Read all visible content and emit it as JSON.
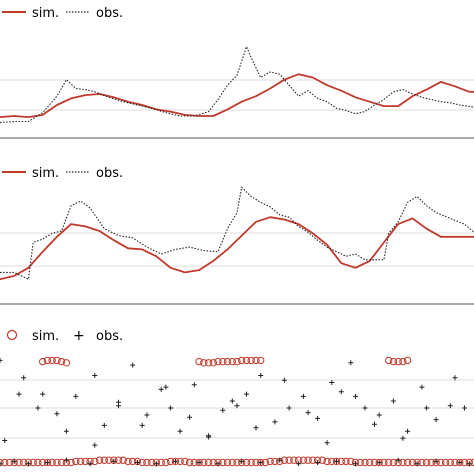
{
  "chart_data": [
    {
      "type": "line",
      "legend": {
        "placement": "top-left",
        "entries": [
          "sim.",
          "obs."
        ]
      },
      "grid": true,
      "xlim": [
        0,
        100
      ],
      "ylim": [
        0,
        1
      ],
      "series": [
        {
          "name": "sim.",
          "color": "#c0392b",
          "style": "solid",
          "x": [
            0,
            3,
            6,
            9,
            12,
            15,
            18,
            21,
            24,
            27,
            30,
            33,
            36,
            39,
            42,
            45,
            48,
            51,
            54,
            57,
            60,
            63,
            66,
            69,
            72,
            75,
            78,
            81,
            84,
            87,
            90,
            93,
            96,
            99,
            100
          ],
          "y": [
            0.19,
            0.2,
            0.19,
            0.21,
            0.3,
            0.36,
            0.39,
            0.4,
            0.37,
            0.33,
            0.3,
            0.26,
            0.24,
            0.21,
            0.2,
            0.2,
            0.26,
            0.33,
            0.38,
            0.45,
            0.53,
            0.58,
            0.55,
            0.48,
            0.43,
            0.37,
            0.33,
            0.29,
            0.29,
            0.38,
            0.44,
            0.51,
            0.47,
            0.42,
            0.42
          ]
        },
        {
          "name": "obs.",
          "color": "#222222",
          "style": "dotted",
          "x": [
            0,
            3,
            6,
            9,
            12,
            14,
            16,
            18,
            20,
            23,
            26,
            29,
            32,
            35,
            38,
            41,
            44,
            46,
            48,
            50,
            52,
            53,
            55,
            57,
            59,
            61,
            63,
            65,
            67,
            69,
            71,
            73,
            75,
            77,
            79,
            81,
            83,
            85,
            87,
            89,
            91,
            93,
            95,
            97,
            100
          ],
          "y": [
            0.14,
            0.15,
            0.15,
            0.23,
            0.38,
            0.53,
            0.45,
            0.44,
            0.42,
            0.37,
            0.33,
            0.3,
            0.27,
            0.23,
            0.2,
            0.2,
            0.24,
            0.35,
            0.48,
            0.57,
            0.83,
            0.73,
            0.55,
            0.6,
            0.58,
            0.48,
            0.38,
            0.43,
            0.36,
            0.33,
            0.27,
            0.25,
            0.22,
            0.24,
            0.3,
            0.35,
            0.42,
            0.44,
            0.4,
            0.37,
            0.35,
            0.33,
            0.32,
            0.3,
            0.28
          ]
        }
      ]
    },
    {
      "type": "line",
      "legend": {
        "placement": "top-left",
        "entries": [
          "sim.",
          "obs."
        ]
      },
      "grid": true,
      "xlim": [
        0,
        100
      ],
      "ylim": [
        0,
        1
      ],
      "series": [
        {
          "name": "sim.",
          "color": "#c0392b",
          "style": "solid",
          "x": [
            0,
            3,
            6,
            9,
            12,
            15,
            18,
            21,
            24,
            27,
            30,
            33,
            36,
            39,
            42,
            45,
            48,
            51,
            54,
            57,
            60,
            63,
            66,
            69,
            72,
            75,
            78,
            81,
            84,
            87,
            90,
            93,
            96,
            99,
            100
          ],
          "y": [
            0.18,
            0.21,
            0.28,
            0.42,
            0.55,
            0.66,
            0.64,
            0.6,
            0.52,
            0.45,
            0.44,
            0.38,
            0.28,
            0.24,
            0.26,
            0.34,
            0.44,
            0.56,
            0.68,
            0.72,
            0.7,
            0.66,
            0.58,
            0.48,
            0.32,
            0.28,
            0.34,
            0.5,
            0.66,
            0.71,
            0.62,
            0.55,
            0.55,
            0.55,
            0.55
          ]
        },
        {
          "name": "obs.",
          "color": "#222222",
          "style": "dotted",
          "x": [
            0,
            3,
            6,
            7,
            9,
            11,
            13,
            15,
            17,
            19,
            22,
            25,
            28,
            31,
            34,
            37,
            40,
            43,
            46,
            48,
            50,
            51,
            53,
            55,
            57,
            59,
            61,
            63,
            65,
            67,
            69,
            71,
            73,
            75,
            77,
            79,
            81,
            82,
            84,
            86,
            88,
            90,
            92,
            95,
            98,
            100
          ],
          "y": [
            0.24,
            0.24,
            0.18,
            0.5,
            0.53,
            0.58,
            0.6,
            0.82,
            0.86,
            0.8,
            0.62,
            0.56,
            0.54,
            0.46,
            0.4,
            0.44,
            0.46,
            0.43,
            0.42,
            0.62,
            0.76,
            0.98,
            0.9,
            0.85,
            0.81,
            0.74,
            0.72,
            0.64,
            0.59,
            0.52,
            0.46,
            0.42,
            0.38,
            0.4,
            0.35,
            0.35,
            0.35,
            0.58,
            0.68,
            0.85,
            0.9,
            0.82,
            0.76,
            0.71,
            0.66,
            0.59
          ]
        }
      ]
    },
    {
      "type": "scatter",
      "legend": {
        "placement": "top-left",
        "entries": [
          "sim.",
          "obs."
        ]
      },
      "grid": true,
      "xlim": [
        0,
        100
      ],
      "ylim": [
        0,
        1
      ],
      "series": [
        {
          "name": "sim.",
          "color": "#c0392b",
          "marker": "open-circle",
          "x": [
            0,
            1,
            2,
            3,
            4,
            5,
            6,
            7,
            8,
            9,
            10,
            11,
            12,
            13,
            14,
            15,
            16,
            17,
            18,
            19,
            20,
            21,
            22,
            23,
            24,
            25,
            26,
            27,
            28,
            29,
            30,
            31,
            32,
            33,
            34,
            35,
            36,
            37,
            38,
            39,
            40,
            41,
            42,
            43,
            44,
            45,
            46,
            47,
            48,
            49,
            50,
            51,
            52,
            53,
            54,
            55,
            56,
            57,
            58,
            59,
            60,
            61,
            62,
            63,
            64,
            65,
            66,
            67,
            68,
            69,
            70,
            71,
            72,
            73,
            74,
            75,
            76,
            77,
            78,
            79,
            80,
            81,
            82,
            83,
            84,
            85,
            86,
            87,
            88,
            89,
            90,
            91,
            92,
            93,
            94,
            95,
            96,
            97,
            98,
            99,
            100,
            9,
            10,
            11,
            12,
            13,
            14,
            42,
            43,
            44,
            45,
            46,
            47,
            48,
            49,
            50,
            51,
            52,
            53,
            54,
            55,
            82,
            83,
            84,
            85,
            86
          ],
          "y": [
            0.03,
            0.03,
            0.03,
            0.03,
            0.03,
            0.03,
            0.03,
            0.03,
            0.03,
            0.03,
            0.03,
            0.03,
            0.03,
            0.03,
            0.03,
            0.03,
            0.04,
            0.04,
            0.04,
            0.04,
            0.04,
            0.05,
            0.05,
            0.05,
            0.05,
            0.05,
            0.05,
            0.04,
            0.04,
            0.04,
            0.03,
            0.03,
            0.03,
            0.03,
            0.03,
            0.03,
            0.04,
            0.04,
            0.04,
            0.04,
            0.03,
            0.03,
            0.03,
            0.03,
            0.03,
            0.03,
            0.03,
            0.03,
            0.03,
            0.03,
            0.03,
            0.03,
            0.03,
            0.03,
            0.03,
            0.03,
            0.03,
            0.04,
            0.04,
            0.04,
            0.05,
            0.05,
            0.05,
            0.05,
            0.05,
            0.05,
            0.05,
            0.05,
            0.05,
            0.04,
            0.04,
            0.04,
            0.04,
            0.04,
            0.04,
            0.03,
            0.03,
            0.03,
            0.03,
            0.03,
            0.03,
            0.03,
            0.03,
            0.03,
            0.03,
            0.03,
            0.03,
            0.03,
            0.03,
            0.03,
            0.03,
            0.03,
            0.03,
            0.03,
            0.03,
            0.03,
            0.03,
            0.03,
            0.03,
            0.03,
            0.03,
            0.9,
            0.91,
            0.91,
            0.91,
            0.9,
            0.89,
            0.9,
            0.89,
            0.89,
            0.89,
            0.9,
            0.9,
            0.9,
            0.9,
            0.9,
            0.91,
            0.91,
            0.91,
            0.91,
            0.91,
            0.91,
            0.9,
            0.9,
            0.9,
            0.91
          ]
        },
        {
          "name": "obs.",
          "color": "#222222",
          "marker": "plus",
          "x": [
            0,
            4,
            8,
            12,
            16,
            20,
            22,
            25,
            28,
            31,
            34,
            36,
            38,
            41,
            44,
            47,
            50,
            52,
            55,
            58,
            61,
            64,
            67,
            70,
            72,
            74,
            77,
            80,
            83,
            86,
            89,
            92,
            95,
            98,
            1,
            5,
            9,
            14,
            20,
            25,
            30,
            35,
            40,
            44,
            49,
            54,
            60,
            65,
            69,
            75,
            79,
            85,
            90,
            96,
            0,
            3,
            6,
            10,
            14,
            19,
            24,
            29,
            33,
            37,
            42,
            46,
            51,
            55,
            59,
            63,
            67,
            71,
            75,
            80,
            84,
            88,
            92,
            97,
            99
          ],
          "y": [
            0.91,
            0.62,
            0.5,
            0.45,
            0.6,
            0.78,
            0.35,
            0.52,
            0.87,
            0.44,
            0.66,
            0.5,
            0.3,
            0.7,
            0.26,
            0.48,
            0.52,
            0.62,
            0.78,
            0.38,
            0.5,
            0.6,
            0.41,
            0.72,
            0.64,
            0.89,
            0.5,
            0.44,
            0.56,
            0.3,
            0.68,
            0.4,
            0.52,
            0.5,
            0.22,
            0.76,
            0.62,
            0.3,
            0.18,
            0.55,
            0.35,
            0.68,
            0.42,
            0.25,
            0.56,
            0.33,
            0.74,
            0.46,
            0.2,
            0.6,
            0.36,
            0.24,
            0.5,
            0.76,
            0.02,
            0.04,
            0.02,
            0.03,
            0.05,
            0.02,
            0.04,
            0.03,
            0.02,
            0.04,
            0.03,
            0.02,
            0.04,
            0.03,
            0.05,
            0.02,
            0.03,
            0.04,
            0.02,
            0.03,
            0.05,
            0.02,
            0.04,
            0.03,
            0.02
          ]
        }
      ]
    }
  ]
}
